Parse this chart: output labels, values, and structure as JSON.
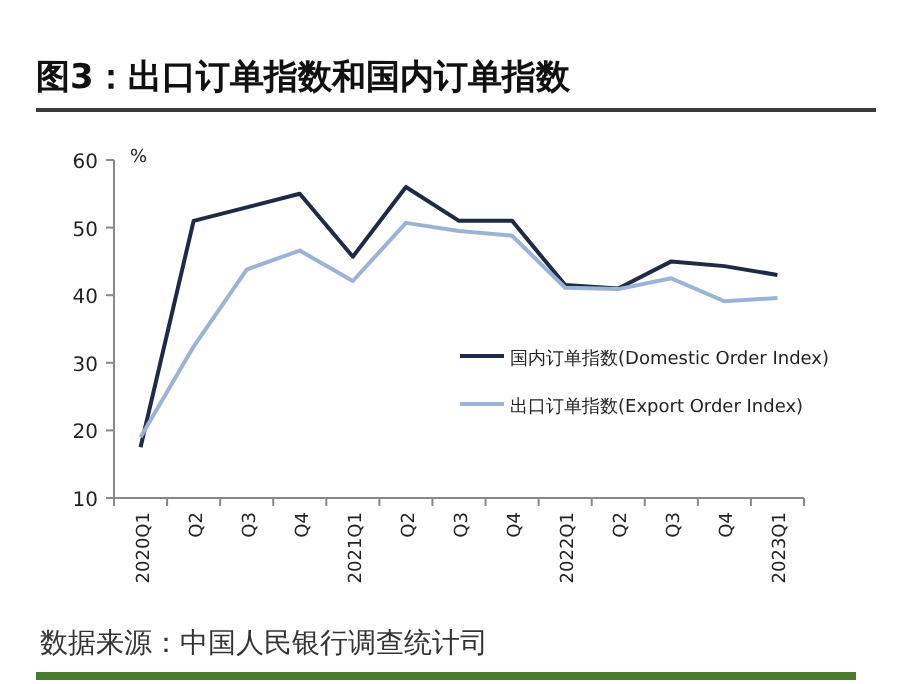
{
  "chart_data": {
    "type": "line",
    "title": "图3：出口订单指数和国内订单指数",
    "ylabel": "%",
    "categories": [
      "2020Q1",
      "Q2",
      "Q3",
      "Q4",
      "2021Q1",
      "Q2",
      "Q3",
      "Q4",
      "2022Q1",
      "Q2",
      "Q3",
      "Q4",
      "2023Q1"
    ],
    "series": [
      {
        "name": "国内订单指数(Domestic Order Index)",
        "color": "#1f2a44",
        "values": [
          17.5,
          51,
          53,
          55,
          45.7,
          56,
          51,
          51,
          41.5,
          41,
          45,
          44.3,
          43
        ]
      },
      {
        "name": "出口订单指数(Export Order Index)",
        "color": "#9db3d6",
        "values": [
          19,
          32.4,
          43.8,
          46.6,
          42.1,
          50.7,
          49.5,
          48.8,
          41.1,
          40.9,
          42.5,
          39.1,
          39.6
        ]
      }
    ],
    "ylim": [
      10,
      60
    ],
    "yticks": [
      10,
      20,
      30,
      40,
      50,
      60
    ],
    "grid": false,
    "legend": "bottom right",
    "marker": "none",
    "line_style": "solid",
    "annotations": [
      "数据来源：中国人民银行调查统计司"
    ]
  }
}
